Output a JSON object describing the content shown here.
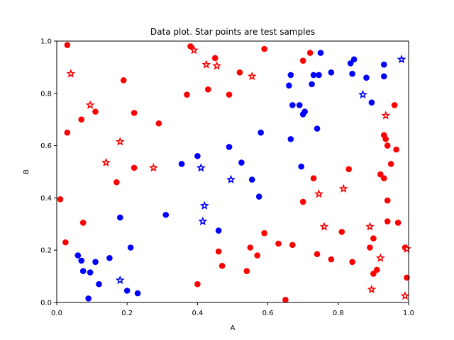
{
  "chart_data": {
    "type": "scatter",
    "title": "Data plot. Star points are test samples",
    "xlabel": "A",
    "ylabel": "B",
    "xlim": [
      0,
      1
    ],
    "ylim": [
      0,
      1
    ],
    "xticks": [
      0.0,
      0.2,
      0.4,
      0.6,
      0.8,
      1.0
    ],
    "yticks": [
      0.0,
      0.2,
      0.4,
      0.6,
      0.8,
      1.0
    ],
    "xtick_labels": [
      "0.0",
      "0.2",
      "0.4",
      "0.6",
      "0.8",
      "1.0"
    ],
    "ytick_labels": [
      "0.0",
      "0.2",
      "0.4",
      "0.6",
      "0.8",
      "1.0"
    ],
    "grid": false,
    "colors": {
      "red": "#ff0000",
      "blue": "#0000ff"
    },
    "series": [
      {
        "color": "red",
        "marker": "circle",
        "points": [
          [
            0.03,
            0.985
          ],
          [
            0.03,
            0.65
          ],
          [
            0.025,
            0.23
          ],
          [
            0.01,
            0.395
          ],
          [
            0.07,
            0.7
          ],
          [
            0.11,
            0.73
          ],
          [
            0.075,
            0.305
          ],
          [
            0.19,
            0.85
          ],
          [
            0.22,
            0.725
          ],
          [
            0.22,
            0.515
          ],
          [
            0.17,
            0.46
          ],
          [
            0.29,
            0.685
          ],
          [
            0.37,
            0.795
          ],
          [
            0.38,
            0.98
          ],
          [
            0.43,
            0.815
          ],
          [
            0.45,
            0.935
          ],
          [
            0.49,
            0.795
          ],
          [
            0.52,
            0.88
          ],
          [
            0.59,
            0.97
          ],
          [
            0.4,
            0.07
          ],
          [
            0.46,
            0.195
          ],
          [
            0.47,
            0.14
          ],
          [
            0.54,
            0.12
          ],
          [
            0.55,
            0.21
          ],
          [
            0.57,
            0.18
          ],
          [
            0.59,
            0.265
          ],
          [
            0.63,
            0.225
          ],
          [
            0.65,
            0.01
          ],
          [
            0.67,
            0.22
          ],
          [
            0.7,
            0.925
          ],
          [
            0.72,
            0.955
          ],
          [
            0.7,
            0.385
          ],
          [
            0.74,
            0.185
          ],
          [
            0.73,
            0.475
          ],
          [
            0.78,
            0.165
          ],
          [
            0.81,
            0.27
          ],
          [
            0.83,
            0.51
          ],
          [
            0.84,
            0.155
          ],
          [
            0.89,
            0.21
          ],
          [
            0.9,
            0.245
          ],
          [
            0.9,
            0.11
          ],
          [
            0.91,
            0.125
          ],
          [
            0.92,
            0.49
          ],
          [
            0.93,
            0.64
          ],
          [
            0.935,
            0.625
          ],
          [
            0.94,
            0.6
          ],
          [
            0.93,
            0.475
          ],
          [
            0.94,
            0.39
          ],
          [
            0.94,
            0.31
          ],
          [
            0.95,
            0.53
          ],
          [
            0.96,
            0.755
          ],
          [
            0.965,
            0.585
          ],
          [
            0.97,
            0.305
          ],
          [
            0.99,
            0.21
          ],
          [
            0.995,
            0.095
          ]
        ]
      },
      {
        "color": "blue",
        "marker": "circle",
        "points": [
          [
            0.06,
            0.18
          ],
          [
            0.07,
            0.16
          ],
          [
            0.075,
            0.12
          ],
          [
            0.09,
            0.015
          ],
          [
            0.095,
            0.115
          ],
          [
            0.11,
            0.155
          ],
          [
            0.12,
            0.07
          ],
          [
            0.15,
            0.17
          ],
          [
            0.18,
            0.325
          ],
          [
            0.2,
            0.045
          ],
          [
            0.21,
            0.21
          ],
          [
            0.23,
            0.035
          ],
          [
            0.31,
            0.335
          ],
          [
            0.355,
            0.53
          ],
          [
            0.4,
            0.56
          ],
          [
            0.46,
            0.275
          ],
          [
            0.49,
            0.595
          ],
          [
            0.525,
            0.535
          ],
          [
            0.555,
            0.47
          ],
          [
            0.575,
            0.405
          ],
          [
            0.58,
            0.65
          ],
          [
            0.66,
            0.83
          ],
          [
            0.665,
            0.87
          ],
          [
            0.665,
            0.625
          ],
          [
            0.67,
            0.755
          ],
          [
            0.69,
            0.755
          ],
          [
            0.695,
            0.52
          ],
          [
            0.7,
            0.72
          ],
          [
            0.705,
            0.73
          ],
          [
            0.725,
            0.835
          ],
          [
            0.73,
            0.87
          ],
          [
            0.74,
            0.665
          ],
          [
            0.745,
            0.87
          ],
          [
            0.75,
            0.955
          ],
          [
            0.78,
            0.88
          ],
          [
            0.835,
            0.915
          ],
          [
            0.84,
            0.875
          ],
          [
            0.845,
            0.93
          ],
          [
            0.88,
            0.86
          ],
          [
            0.895,
            0.765
          ],
          [
            0.93,
            0.91
          ],
          [
            0.93,
            0.865
          ]
        ]
      },
      {
        "color": "red",
        "marker": "star",
        "points": [
          [
            0.04,
            0.875
          ],
          [
            0.095,
            0.755
          ],
          [
            0.14,
            0.535
          ],
          [
            0.18,
            0.615
          ],
          [
            0.275,
            0.515
          ],
          [
            0.39,
            0.965
          ],
          [
            0.425,
            0.91
          ],
          [
            0.455,
            0.905
          ],
          [
            0.555,
            0.865
          ],
          [
            0.745,
            0.415
          ],
          [
            0.76,
            0.29
          ],
          [
            0.815,
            0.435
          ],
          [
            0.89,
            0.29
          ],
          [
            0.895,
            0.05
          ],
          [
            0.92,
            0.17
          ],
          [
            0.935,
            0.715
          ],
          [
            0.99,
            0.025
          ],
          [
            0.995,
            0.205
          ]
        ]
      },
      {
        "color": "blue",
        "marker": "star",
        "points": [
          [
            0.18,
            0.085
          ],
          [
            0.41,
            0.515
          ],
          [
            0.415,
            0.31
          ],
          [
            0.42,
            0.37
          ],
          [
            0.495,
            0.47
          ],
          [
            0.87,
            0.795
          ],
          [
            0.98,
            0.93
          ]
        ]
      }
    ]
  }
}
